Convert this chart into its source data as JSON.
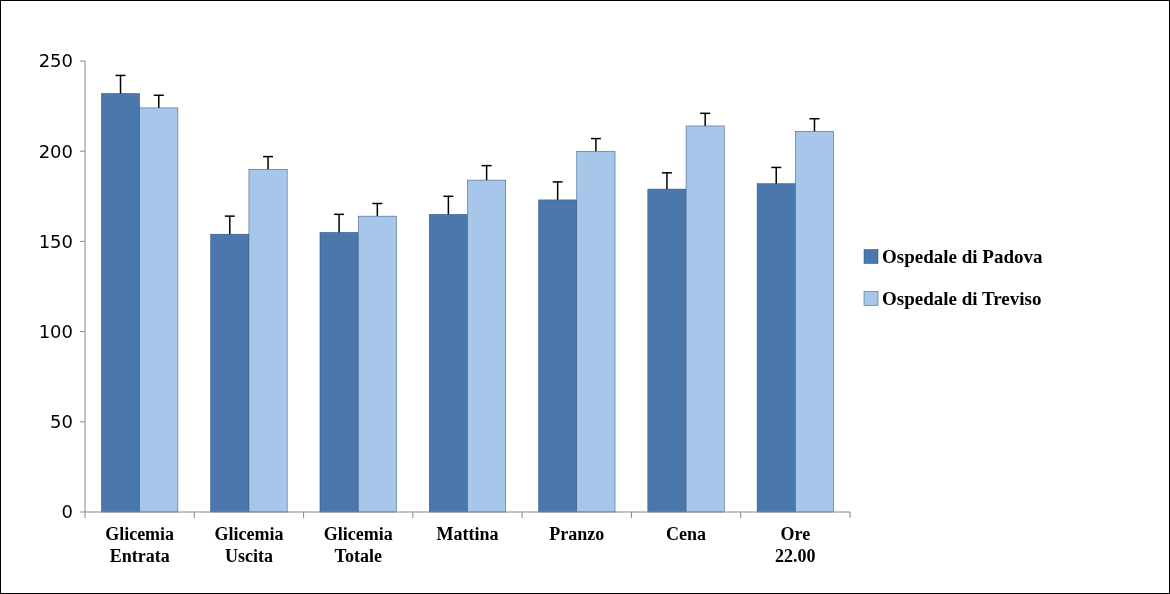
{
  "chart_data": {
    "type": "bar",
    "categories": [
      "Glicemia Entrata",
      "Glicemia Uscita",
      "Glicemia Totale",
      "Mattina",
      "Pranzo",
      "Cena",
      "Ore 22.00"
    ],
    "series": [
      {
        "name": "Ospedale di Padova",
        "color": "#4a78ac",
        "values": [
          232,
          154,
          155,
          165,
          173,
          179,
          182
        ],
        "errors": [
          10,
          10,
          10,
          10,
          10,
          9,
          9
        ]
      },
      {
        "name": "Ospedale di Treviso",
        "color": "#a6c6ea",
        "values": [
          224,
          190,
          164,
          184,
          200,
          214,
          211
        ],
        "errors": [
          7,
          7,
          7,
          8,
          7,
          7,
          7
        ]
      }
    ],
    "ylim": [
      0,
      250
    ],
    "yticks": [
      0,
      50,
      100,
      150,
      200,
      250
    ],
    "grid": false,
    "legend": "right"
  }
}
